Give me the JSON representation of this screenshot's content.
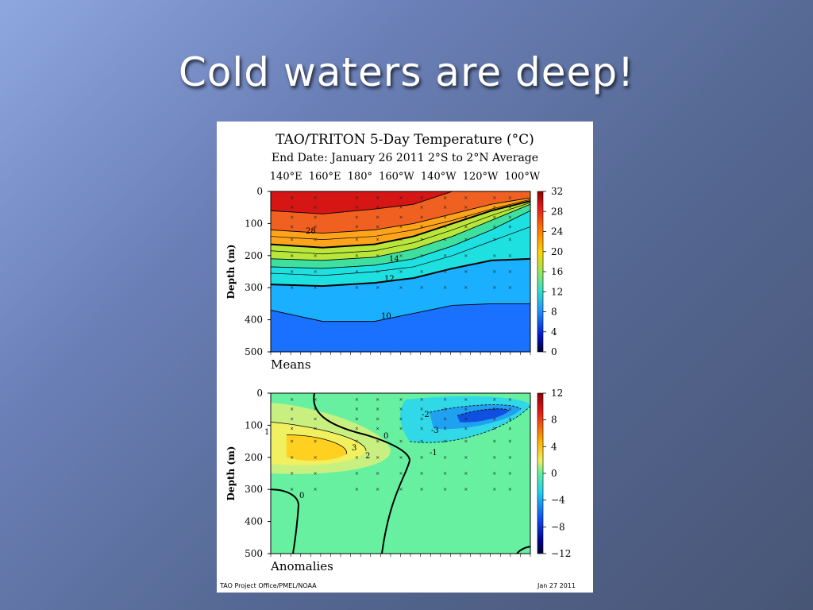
{
  "slide": {
    "title": "Cold waters are deep!"
  },
  "figure": {
    "title": "TAO/TRITON 5-Day Temperature (°C)",
    "subtitle": "End Date: January 26 2011   2°S to 2°N Average",
    "longitudes": "140°E 160°E 180° 160°W 140°W 120°W 100°W",
    "footer_left": "TAO Project Office/PMEL/NOAA",
    "footer_right": "Jan 27 2011"
  },
  "chart_data": [
    {
      "type": "heatmap",
      "name": "Means",
      "ylabel": "Depth (m)",
      "x_labels": [
        "140°E",
        "160°E",
        "180°",
        "160°W",
        "140°W",
        "120°W",
        "100°W"
      ],
      "y_ticks": [
        0,
        100,
        200,
        300,
        400,
        500
      ],
      "ylim": [
        0,
        500
      ],
      "colorbar_ticks": [
        32,
        28,
        24,
        20,
        16,
        12,
        8,
        4,
        0
      ],
      "colorbar_range": [
        0,
        32
      ],
      "contour_labels": [
        "28",
        "14",
        "12",
        "10"
      ],
      "isotherm_depths_m": {
        "lon_x_frac": [
          0.0,
          0.2,
          0.4,
          0.55,
          0.7,
          0.85,
          1.0
        ],
        "28": [
          60,
          70,
          55,
          40,
          null,
          null,
          null
        ],
        "24": [
          120,
          130,
          120,
          100,
          70,
          40,
          20
        ],
        "20": [
          165,
          175,
          165,
          140,
          100,
          60,
          30
        ],
        "16": [
          210,
          215,
          205,
          180,
          140,
          90,
          40
        ],
        "14": [
          235,
          240,
          230,
          210,
          170,
          120,
          60
        ],
        "12": [
          290,
          295,
          285,
          270,
          240,
          215,
          210
        ],
        "10": [
          370,
          405,
          405,
          380,
          355,
          350,
          350
        ]
      }
    },
    {
      "type": "heatmap",
      "name": "Anomalies",
      "ylabel": "Depth (m)",
      "x_labels": [
        "140°E",
        "160°E",
        "180°",
        "160°W",
        "140°W",
        "120°W",
        "100°W"
      ],
      "y_ticks": [
        0,
        100,
        200,
        300,
        400,
        500
      ],
      "ylim": [
        0,
        500
      ],
      "colorbar_ticks": [
        12,
        8,
        4,
        0,
        -4,
        -8,
        -12
      ],
      "colorbar_range": [
        -12,
        12
      ],
      "contour_labels": [
        "1",
        "3",
        "2",
        "0",
        "-2",
        "-3",
        "-1",
        "0"
      ]
    }
  ]
}
